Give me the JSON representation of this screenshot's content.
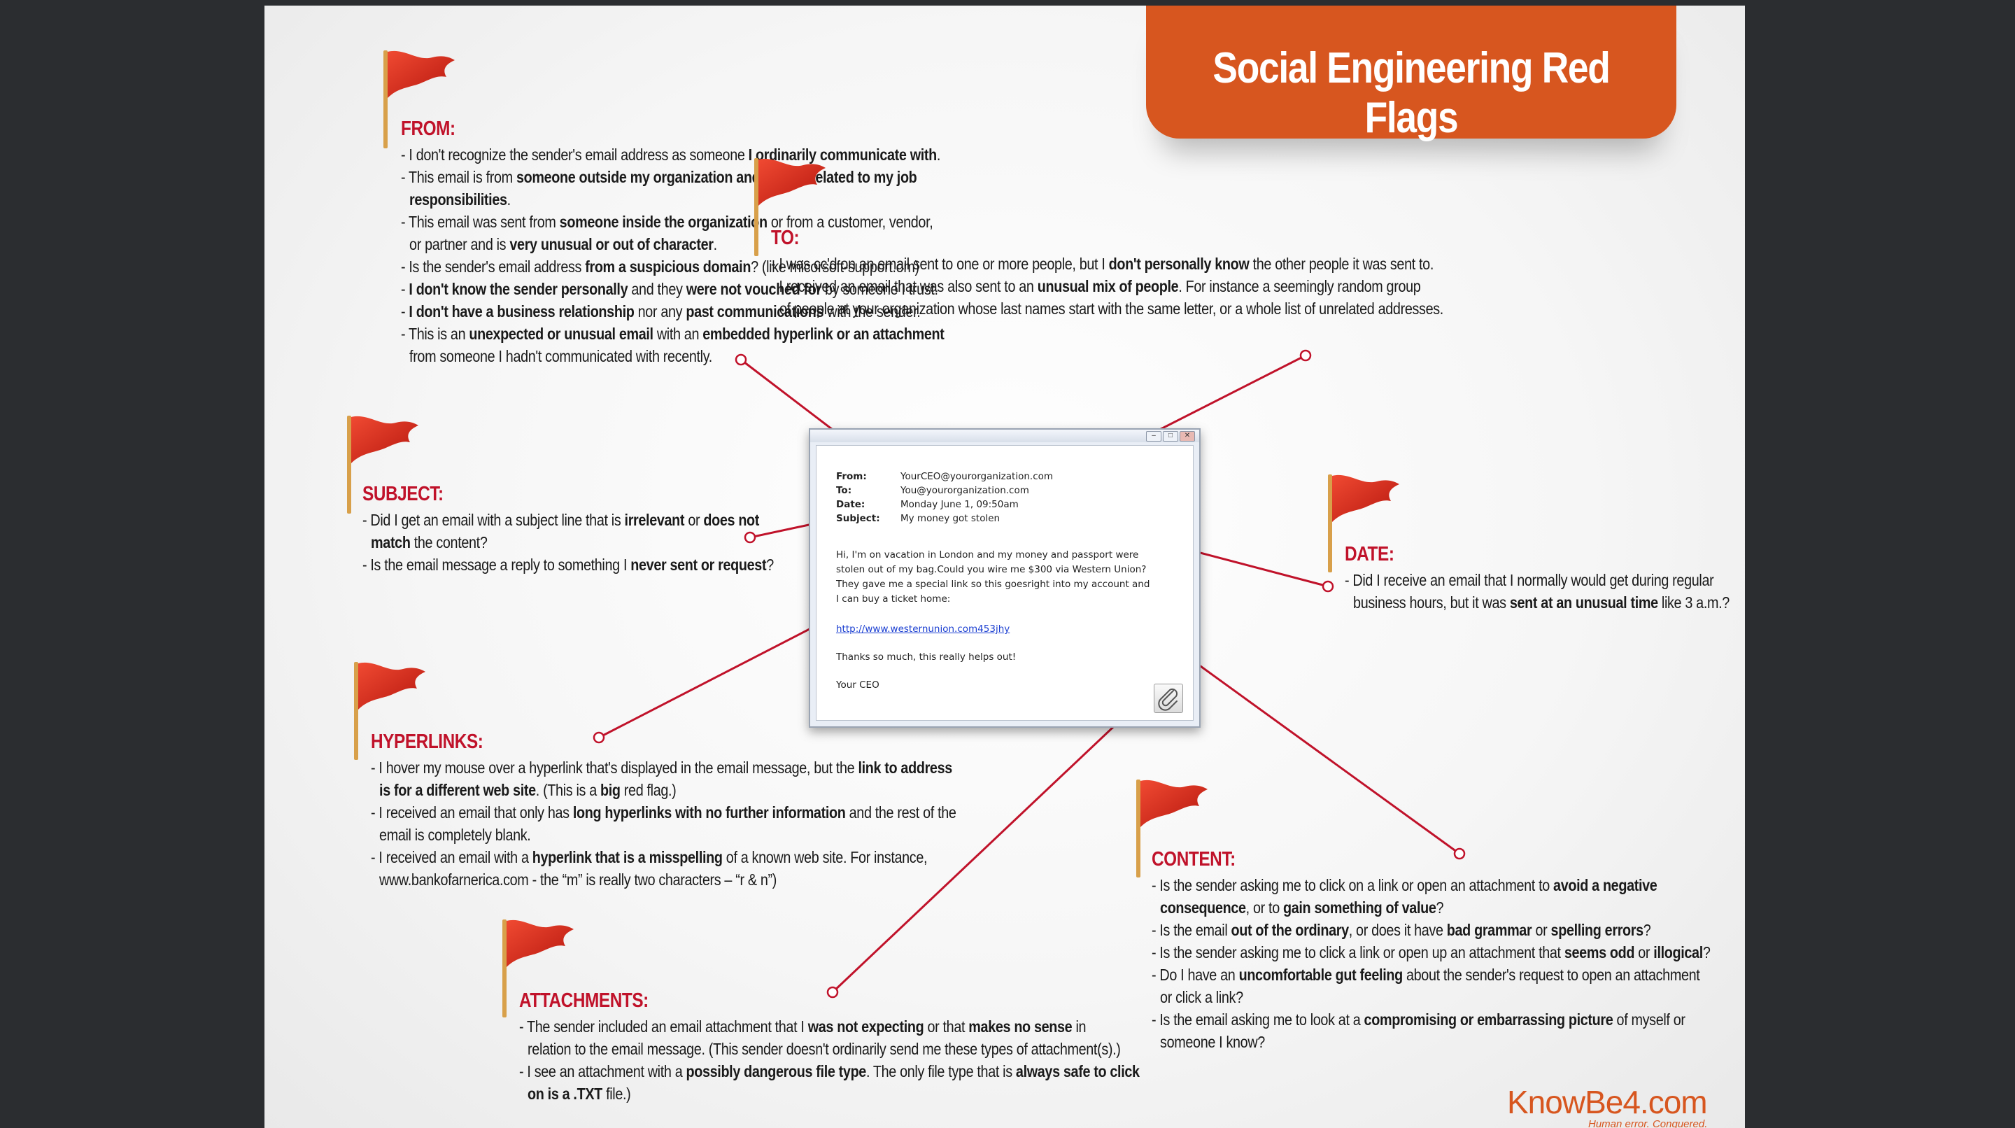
{
  "title": "Social Engineering Red Flags",
  "sections": {
    "from": {
      "heading": "FROM:",
      "items": [
        [
          [
            "- I don't recognize the sender's email address as someone ",
            false
          ],
          [
            "I ordinarily communicate with",
            true
          ],
          [
            ".",
            false
          ]
        ],
        [
          [
            "- This email is from ",
            false
          ],
          [
            "someone outside my organization and it's not related to my job",
            true
          ],
          [
            "|",
            false
          ],
          [
            "responsibilities",
            true
          ],
          [
            ".",
            false
          ]
        ],
        [
          [
            "- This email was sent from ",
            false
          ],
          [
            "someone inside the organization",
            true
          ],
          [
            " or from a customer, vendor,",
            false
          ],
          [
            "|",
            false
          ],
          [
            "or partner and is ",
            false
          ],
          [
            "very unusual or out of character",
            true
          ],
          [
            ".",
            false
          ]
        ],
        [
          [
            "- Is the sender's email address ",
            false
          ],
          [
            "from a suspicious domain",
            true
          ],
          [
            "? (like micorsoft-support.om)",
            false
          ]
        ],
        [
          [
            "- ",
            false
          ],
          [
            "I don't know the sender personally",
            true
          ],
          [
            " and they ",
            false
          ],
          [
            "were not vouched for",
            true
          ],
          [
            " by someone I trust.",
            false
          ]
        ],
        [
          [
            "- ",
            false
          ],
          [
            "I don't have a business relationship",
            true
          ],
          [
            " nor any ",
            false
          ],
          [
            "past communications",
            true
          ],
          [
            " with the sender.",
            false
          ]
        ],
        [
          [
            "- This is an ",
            false
          ],
          [
            "unexpected or unusual email",
            true
          ],
          [
            " with an ",
            false
          ],
          [
            "embedded hyperlink or an attachment",
            true
          ],
          [
            "|",
            false
          ],
          [
            "from someone I hadn't communicated with recently.",
            false
          ]
        ]
      ]
    },
    "to": {
      "heading": "TO:",
      "items": [
        [
          [
            "- I was cc'd on an email sent to one or more people, but I ",
            false
          ],
          [
            "don't personally know",
            true
          ],
          [
            " the other people it was sent to.",
            false
          ]
        ],
        [
          [
            "- I received an email that was also sent to an ",
            false
          ],
          [
            "unusual mix of people",
            true
          ],
          [
            ". For instance a seemingly random group",
            false
          ],
          [
            "|",
            false
          ],
          [
            "of people at your organization whose last names start with the same letter, or a whole list of unrelated addresses.",
            false
          ]
        ]
      ]
    },
    "subject": {
      "heading": "SUBJECT:",
      "items": [
        [
          [
            "- Did I get an email with a subject line that is ",
            false
          ],
          [
            "irrelevant",
            true
          ],
          [
            " or ",
            false
          ],
          [
            "does not",
            true
          ],
          [
            "|",
            false
          ],
          [
            "match",
            true
          ],
          [
            " the content?",
            false
          ]
        ],
        [
          [
            "- Is the email message a reply to something I ",
            false
          ],
          [
            "never sent or request",
            true
          ],
          [
            "?",
            false
          ]
        ]
      ]
    },
    "date": {
      "heading": "DATE:",
      "items": [
        [
          [
            "- Did I receive an email that I normally would get during regular",
            false
          ],
          [
            "|",
            false
          ],
          [
            "business hours, but it was ",
            false
          ],
          [
            "sent at an unusual time",
            true
          ],
          [
            " like 3 a.m.?",
            false
          ]
        ]
      ]
    },
    "hyperlinks": {
      "heading": "HYPERLINKS:",
      "items": [
        [
          [
            "- I hover my mouse over a hyperlink that's displayed in the email message, but the ",
            false
          ],
          [
            "link to address",
            true
          ],
          [
            "|",
            false
          ],
          [
            "is for a different web site",
            true
          ],
          [
            ". (This is a ",
            false
          ],
          [
            "big",
            true
          ],
          [
            " red flag.)",
            false
          ]
        ],
        [
          [
            "- I received an email that only has ",
            false
          ],
          [
            "long hyperlinks with no further information",
            true
          ],
          [
            " and the rest of the",
            false
          ],
          [
            "|",
            false
          ],
          [
            "email is completely blank.",
            false
          ]
        ],
        [
          [
            "- I received an email with a ",
            false
          ],
          [
            "hyperlink that is a misspelling",
            true
          ],
          [
            " of a known web site. For instance,",
            false
          ],
          [
            "|",
            false
          ],
          [
            "www.bankofarnerica.com - the “m” is really two characters – “r & n”)",
            false
          ]
        ]
      ]
    },
    "content": {
      "heading": "CONTENT:",
      "items": [
        [
          [
            "- Is the sender asking me to click on a link or open an attachment to ",
            false
          ],
          [
            "avoid a negative",
            true
          ],
          [
            "|",
            false
          ],
          [
            "consequence",
            true
          ],
          [
            ", or to ",
            false
          ],
          [
            "gain something of value",
            true
          ],
          [
            "?",
            false
          ]
        ],
        [
          [
            "- Is the email ",
            false
          ],
          [
            "out of the ordinary",
            true
          ],
          [
            ", or does it have ",
            false
          ],
          [
            "bad grammar",
            true
          ],
          [
            " or ",
            false
          ],
          [
            "spelling errors",
            true
          ],
          [
            "?",
            false
          ]
        ],
        [
          [
            "- Is the sender asking me to click a link or open up an attachment that ",
            false
          ],
          [
            "seems odd",
            true
          ],
          [
            " or ",
            false
          ],
          [
            "illogical",
            true
          ],
          [
            "?",
            false
          ]
        ],
        [
          [
            "- Do I have an ",
            false
          ],
          [
            "uncomfortable gut feeling",
            true
          ],
          [
            " about the sender's request to open an attachment",
            false
          ],
          [
            "|",
            false
          ],
          [
            "or click a link?",
            false
          ]
        ],
        [
          [
            "- Is the email asking me to look at a ",
            false
          ],
          [
            "compromising or embarrassing picture",
            true
          ],
          [
            " of myself or",
            false
          ],
          [
            "|",
            false
          ],
          [
            "someone I know?",
            false
          ]
        ]
      ]
    },
    "attachments": {
      "heading": "ATTACHMENTS:",
      "items": [
        [
          [
            "- The sender included an email attachment that I ",
            false
          ],
          [
            "was not expecting",
            true
          ],
          [
            " or that ",
            false
          ],
          [
            "makes no sense",
            true
          ],
          [
            " in",
            false
          ],
          [
            "|",
            false
          ],
          [
            "relation to the email message. (This sender doesn't ordinarily send me these types of attachment(s).)",
            false
          ]
        ],
        [
          [
            "- I see an attachment with a ",
            false
          ],
          [
            "possibly dangerous file type",
            true
          ],
          [
            ". The only file type that is ",
            false
          ],
          [
            "always safe to click",
            true
          ],
          [
            "|",
            false
          ],
          [
            "on is a .TXT",
            true
          ],
          [
            " file.)",
            false
          ]
        ]
      ]
    }
  },
  "email": {
    "from_label": "From:",
    "from_value": "YourCEO@yourorganization.com",
    "to_label": "To:",
    "to_value": "You@yourorganization.com",
    "date_label": "Date:",
    "date_value": "Monday June 1, 09:50am",
    "subject_label": "Subject:",
    "subject_value": "My money got stolen",
    "body_lines": [
      "Hi, I'm on vacation in London and my money and passport were",
      "stolen out of my bag.Could you wire me $300 via Western Union?",
      "They gave me a special link so this goesright into my account and",
      "I can buy a ticket home:"
    ],
    "link": "http://www.westernunion.com453jhy",
    "closing": "Thanks so much, this really helps out!",
    "signature": "Your CEO",
    "attachment_icon": "paperclip-icon"
  },
  "logo": {
    "text": "KnowBe4.com",
    "tagline": "Human error. Conquered."
  },
  "colors": {
    "banner": "#d7561f",
    "heading": "#c0122a",
    "connector": "#c0122a",
    "flag": "#d42a1c"
  }
}
